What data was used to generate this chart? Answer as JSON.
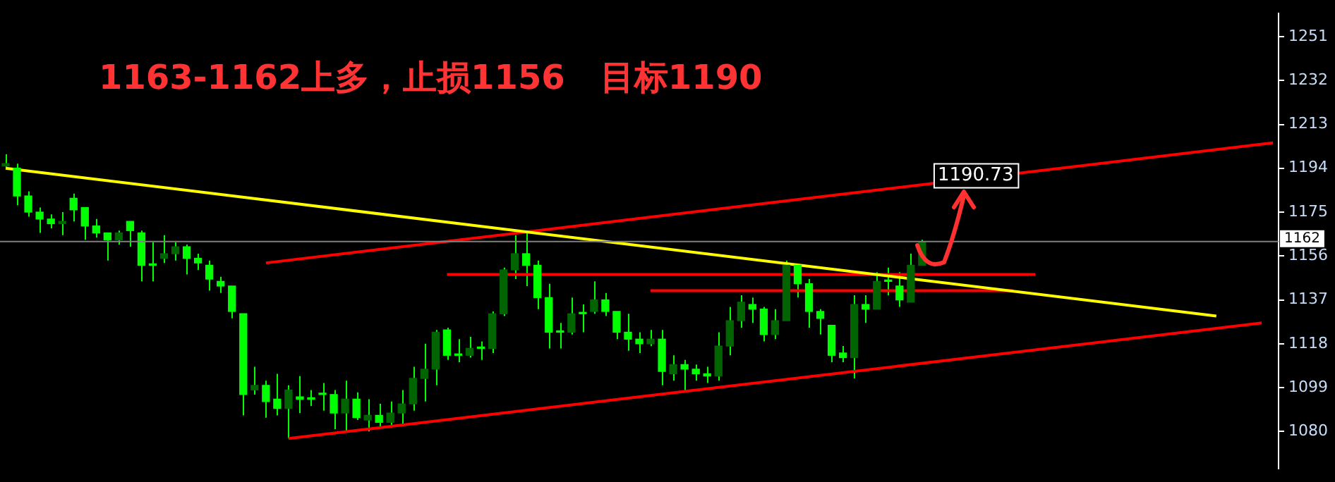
{
  "chart_data": {
    "type": "candlestick",
    "title": "1163-1162上多，止损1156   目标1190",
    "color": "#00ff00",
    "colors": [
      "#006400",
      "#00ff00",
      "#00ff00",
      "#00ff00",
      "#00ff00",
      "#006400",
      "#00ff00",
      "#00ff00",
      "#00ff00",
      "#00ff00",
      "#006400",
      "#00ff00",
      "#00ff00",
      "#00ff00",
      "#006400",
      "#006400",
      "#00ff00",
      "#00ff00",
      "#00ff00",
      "#00ff00",
      "#00ff00",
      "#00ff00",
      "#006400",
      "#00ff00",
      "#00ff00",
      "#006400",
      "#00ff00",
      "#00ff00",
      "#00ff00",
      "#00ff00",
      "#006400",
      "#00ff00",
      "#006400",
      "#00ff00",
      "#006400",
      "#006400",
      "#006400",
      "#006400",
      "#006400",
      "#00ff00",
      "#00ff00",
      "#006400",
      "#00ff00",
      "#006400",
      "#006400",
      "#006400",
      "#00ff00",
      "#00ff00",
      "#00ff00",
      "#00ff00",
      "#006400",
      "#00ff00",
      "#006400",
      "#00ff00",
      "#00ff00",
      "#00ff00",
      "#00ff00",
      "#006400",
      "#00ff00",
      "#006400",
      "#00ff00",
      "#00ff00",
      "#00ff00",
      "#006400",
      "#006400",
      "#006400",
      "#00ff00",
      "#00ff00",
      "#006400",
      "#006400",
      "#00ff00",
      "#00ff00",
      "#00ff00",
      "#00ff00",
      "#00ff00",
      "#006400",
      "#00ff00",
      "#006400",
      "#00ff00",
      "#00ff00",
      "#006400",
      "#006400",
      null,
      null,
      null,
      null,
      null,
      null,
      null,
      null,
      null,
      null,
      null,
      null,
      null,
      null,
      null,
      null,
      null,
      null,
      null,
      null,
      null,
      null,
      null,
      null,
      null,
      null,
      null,
      null,
      null,
      null,
      null
    ],
    "categories": [
      null,
      null,
      null,
      null,
      null,
      null,
      null,
      null,
      null,
      null,
      null,
      null,
      null,
      null,
      null,
      null,
      null,
      null,
      null,
      null,
      null,
      null,
      null,
      null,
      null,
      null,
      null,
      null,
      null,
      null,
      null,
      null,
      null,
      null,
      null,
      null,
      null,
      null,
      null,
      null,
      null,
      null,
      null,
      null,
      null,
      null,
      null,
      null,
      null,
      null,
      null,
      null,
      null,
      null,
      null,
      null,
      null,
      null,
      null,
      null,
      null,
      null,
      null,
      null,
      null,
      null,
      null,
      null,
      null,
      null,
      null,
      null,
      null,
      null,
      null,
      null,
      null,
      null,
      null,
      null,
      null,
      null,
      null,
      null,
      null,
      null,
      null,
      null,
      null,
      null,
      null,
      null,
      null,
      null,
      null,
      null,
      null,
      null,
      null,
      null,
      null,
      null,
      null,
      null,
      null,
      null,
      null,
      null,
      null,
      null,
      null,
      null,
      null
    ],
    "ohlc": [
      [
        1195,
        1200,
        1194,
        1196
      ],
      [
        1194,
        1196,
        1178,
        1182
      ],
      [
        1182,
        1184,
        1173,
        1175
      ],
      [
        1175,
        1177,
        1166,
        1172
      ],
      [
        1172,
        1174,
        1168,
        1170
      ],
      [
        1170,
        1175,
        1165,
        1171
      ],
      [
        1181,
        1183,
        1171,
        1176
      ],
      [
        1177,
        1177,
        1163,
        1169
      ],
      [
        1169,
        1172,
        1164,
        1166
      ],
      [
        1166,
        1166,
        1154,
        1163
      ],
      [
        1163,
        1167,
        1161,
        1166
      ],
      [
        1171,
        1171,
        1160,
        1167
      ],
      [
        1166,
        1167,
        1145,
        1152
      ],
      [
        1152,
        1162,
        1145,
        1152
      ],
      [
        1155,
        1165,
        1153,
        1157
      ],
      [
        1157,
        1162,
        1154,
        1160
      ],
      [
        1160,
        1161,
        1148,
        1155
      ],
      [
        1155,
        1157,
        1150,
        1153
      ],
      [
        1152,
        1154,
        1141,
        1146
      ],
      [
        1145,
        1147,
        1140,
        1143
      ],
      [
        1143,
        1143,
        1129,
        1132
      ],
      [
        1131,
        1131,
        1087,
        1096
      ],
      [
        1098,
        1108,
        1096,
        1100
      ],
      [
        1100,
        1102,
        1086,
        1093
      ],
      [
        1094,
        1105,
        1087,
        1090
      ],
      [
        1090,
        1100,
        1077,
        1098
      ],
      [
        1095,
        1104,
        1088,
        1094
      ],
      [
        1094,
        1098,
        1091,
        1094
      ],
      [
        1096,
        1101,
        1089,
        1096
      ],
      [
        1096,
        1098,
        1081,
        1088
      ],
      [
        1088,
        1102,
        1080,
        1094
      ],
      [
        1094,
        1097,
        1085,
        1086
      ],
      [
        1085,
        1094,
        1080,
        1087
      ],
      [
        1087,
        1092,
        1082,
        1084
      ],
      [
        1084,
        1093,
        1082,
        1088
      ],
      [
        1088,
        1098,
        1083,
        1092
      ],
      [
        1092,
        1108,
        1089,
        1103
      ],
      [
        1103,
        1118,
        1093,
        1107
      ],
      [
        1107,
        1124,
        1100,
        1123
      ],
      [
        1124,
        1125,
        1111,
        1113
      ],
      [
        1113,
        1120,
        1110,
        1113
      ],
      [
        1113,
        1121,
        1112,
        1116
      ],
      [
        1116,
        1119,
        1111,
        1116
      ],
      [
        1116,
        1132,
        1114,
        1131
      ],
      [
        1131,
        1151,
        1130,
        1150
      ],
      [
        1150,
        1165,
        1146,
        1157
      ],
      [
        1157,
        1167,
        1143,
        1152
      ],
      [
        1152,
        1154,
        1133,
        1138
      ],
      [
        1138,
        1144,
        1116,
        1123
      ],
      [
        1123,
        1127,
        1116,
        1123
      ],
      [
        1123,
        1138,
        1122,
        1131
      ],
      [
        1131,
        1135,
        1123,
        1131
      ],
      [
        1132,
        1145,
        1131,
        1137
      ],
      [
        1137,
        1140,
        1130,
        1132
      ],
      [
        1132,
        1132,
        1120,
        1123
      ],
      [
        1123,
        1131,
        1115,
        1120
      ],
      [
        1120,
        1123,
        1114,
        1118
      ],
      [
        1118,
        1124,
        1117,
        1120
      ],
      [
        1120,
        1124,
        1100,
        1106
      ],
      [
        1105,
        1113,
        1102,
        1109
      ],
      [
        1109,
        1111,
        1097,
        1107
      ],
      [
        1107,
        1109,
        1102,
        1105
      ],
      [
        1105,
        1108,
        1101,
        1104
      ],
      [
        1104,
        1123,
        1102,
        1117
      ],
      [
        1117,
        1134,
        1113,
        1128
      ],
      [
        1128,
        1139,
        1125,
        1136
      ],
      [
        1135,
        1138,
        1127,
        1133
      ],
      [
        1133,
        1134,
        1119,
        1122
      ],
      [
        1122,
        1133,
        1120,
        1128
      ],
      [
        1128,
        1154,
        1128,
        1152
      ],
      [
        1152,
        1152,
        1138,
        1144
      ],
      [
        1144,
        1146,
        1125,
        1132
      ],
      [
        1132,
        1133,
        1122,
        1129
      ],
      [
        1126,
        1126,
        1110,
        1113
      ],
      [
        1114,
        1117,
        1110,
        1112
      ],
      [
        1112,
        1139,
        1103,
        1135
      ],
      [
        1135,
        1139,
        1127,
        1133
      ],
      [
        1133,
        1149,
        1133,
        1145
      ],
      [
        1145,
        1151,
        1139,
        1145
      ],
      [
        1143,
        1149,
        1134,
        1137
      ],
      [
        1136,
        1157,
        1136,
        1152
      ],
      [
        1152,
        1163,
        1152,
        1162
      ],
      null,
      null,
      null,
      null,
      null,
      null,
      null,
      null,
      null,
      null,
      null,
      null,
      null,
      null,
      null,
      null,
      null,
      null,
      null,
      null,
      null,
      null,
      null,
      null,
      null,
      null,
      null,
      null,
      null,
      null,
      null
    ],
    "series": [
      {
        "type": "line",
        "color": "#ffff00",
        "values": [
          1194,
          null,
          null,
          null,
          null,
          null,
          null,
          null,
          null,
          null,
          null,
          null,
          null,
          null,
          null,
          null,
          null,
          null,
          null,
          null,
          null,
          null,
          null,
          null,
          null,
          null,
          null,
          null,
          null,
          null,
          null,
          null,
          null,
          null,
          null,
          null,
          null,
          null,
          null,
          null,
          null,
          null,
          null,
          null,
          null,
          null,
          null,
          null,
          null,
          null,
          null,
          null,
          null,
          null,
          null,
          null,
          null,
          null,
          null,
          null,
          null,
          null,
          null,
          null,
          null,
          null,
          null,
          null,
          null,
          null,
          null,
          null,
          null,
          null,
          null,
          null,
          null,
          null,
          null,
          null,
          null,
          null,
          null,
          null,
          null,
          null,
          null,
          null,
          null,
          null,
          null,
          null,
          null,
          null,
          null,
          null,
          null,
          null,
          null,
          null,
          null,
          null,
          null,
          null,
          null,
          null,
          null,
          1130,
          null,
          null,
          null,
          null,
          null
        ]
      },
      {
        "type": "line",
        "color": "#ff0000",
        "values": [
          null,
          null,
          null,
          null,
          null,
          null,
          null,
          null,
          null,
          null,
          null,
          null,
          null,
          null,
          null,
          null,
          null,
          null,
          null,
          null,
          null,
          null,
          null,
          1153,
          null,
          null,
          null,
          null,
          null,
          null,
          null,
          null,
          null,
          null,
          null,
          null,
          null,
          null,
          null,
          null,
          null,
          null,
          null,
          null,
          null,
          null,
          null,
          null,
          null,
          null,
          null,
          null,
          null,
          null,
          null,
          null,
          null,
          null,
          null,
          null,
          null,
          null,
          null,
          null,
          null,
          null,
          null,
          null,
          null,
          null,
          null,
          null,
          null,
          null,
          null,
          null,
          null,
          null,
          null,
          null,
          null,
          null,
          null,
          null,
          null,
          null,
          null,
          null,
          null,
          null,
          null,
          null,
          null,
          null,
          null,
          null,
          null,
          null,
          null,
          null,
          null,
          null,
          null,
          null,
          null,
          null,
          null,
          null,
          null,
          null,
          null,
          null,
          1205
        ]
      },
      {
        "type": "line",
        "color": "#ff0000",
        "values": [
          null,
          null,
          null,
          null,
          null,
          null,
          null,
          null,
          null,
          null,
          null,
          null,
          null,
          null,
          null,
          null,
          null,
          null,
          null,
          null,
          null,
          null,
          null,
          null,
          null,
          1077,
          null,
          null,
          null,
          null,
          null,
          null,
          null,
          null,
          null,
          null,
          null,
          null,
          null,
          null,
          null,
          null,
          null,
          null,
          null,
          null,
          null,
          null,
          null,
          null,
          null,
          null,
          null,
          null,
          null,
          null,
          null,
          null,
          null,
          null,
          null,
          null,
          null,
          null,
          null,
          null,
          null,
          null,
          null,
          null,
          null,
          null,
          null,
          null,
          null,
          null,
          null,
          null,
          null,
          null,
          null,
          null,
          null,
          null,
          null,
          null,
          null,
          null,
          null,
          null,
          null,
          null,
          null,
          null,
          null,
          null,
          null,
          null,
          null,
          null,
          null,
          null,
          null,
          null,
          null,
          null,
          null,
          null,
          null,
          null,
          null,
          1127,
          null
        ]
      },
      {
        "type": "line",
        "color": "#ff0000",
        "values": [
          null,
          null,
          null,
          null,
          null,
          null,
          null,
          null,
          null,
          null,
          null,
          null,
          null,
          null,
          null,
          null,
          null,
          null,
          null,
          null,
          null,
          null,
          null,
          null,
          null,
          null,
          null,
          null,
          null,
          null,
          null,
          null,
          null,
          null,
          null,
          null,
          null,
          null,
          null,
          1148,
          null,
          null,
          null,
          null,
          null,
          null,
          null,
          null,
          null,
          null,
          null,
          null,
          null,
          null,
          null,
          null,
          null,
          null,
          null,
          null,
          null,
          null,
          null,
          null,
          null,
          null,
          null,
          null,
          null,
          null,
          null,
          null,
          null,
          null,
          null,
          null,
          null,
          null,
          null,
          null,
          null,
          null,
          null,
          null,
          null,
          null,
          null,
          null,
          null,
          null,
          null,
          1148,
          null,
          null,
          null,
          null,
          null,
          null,
          null,
          null,
          null,
          null,
          null,
          null,
          null,
          null,
          null,
          null,
          null,
          null,
          null,
          null,
          null
        ]
      },
      {
        "type": "line",
        "color": "#ff0000",
        "values": [
          null,
          null,
          null,
          null,
          null,
          null,
          null,
          null,
          null,
          null,
          null,
          null,
          null,
          null,
          null,
          null,
          null,
          null,
          null,
          null,
          null,
          null,
          null,
          null,
          null,
          null,
          null,
          null,
          null,
          null,
          null,
          null,
          null,
          null,
          null,
          null,
          null,
          null,
          null,
          null,
          null,
          null,
          null,
          null,
          null,
          null,
          null,
          null,
          null,
          null,
          null,
          null,
          null,
          null,
          null,
          null,
          null,
          1141,
          null,
          null,
          null,
          null,
          null,
          null,
          null,
          null,
          null,
          null,
          null,
          null,
          null,
          null,
          null,
          null,
          null,
          null,
          null,
          null,
          null,
          null,
          null,
          null,
          null,
          null,
          null,
          null,
          null,
          null,
          null,
          1141,
          null,
          null,
          null,
          null,
          null,
          null,
          null,
          null,
          null,
          null,
          null,
          null,
          null,
          null,
          null,
          null,
          null,
          null,
          null,
          null,
          null,
          null,
          null
        ]
      }
    ],
    "annotations": [
      {
        "text": "1190.73",
        "y": 1190.73
      }
    ],
    "ref_lines": [
      {
        "axis": "y",
        "value": 1162.3,
        "label": "1162",
        "color": "#808080"
      }
    ],
    "ylim": [
      1064,
      1261
    ],
    "yticks": [
      1080,
      1099,
      1118,
      1137,
      1156,
      1175,
      1194,
      1213,
      1232,
      1251
    ],
    "tick_labels": "y",
    "grid": false,
    "legend": false
  }
}
